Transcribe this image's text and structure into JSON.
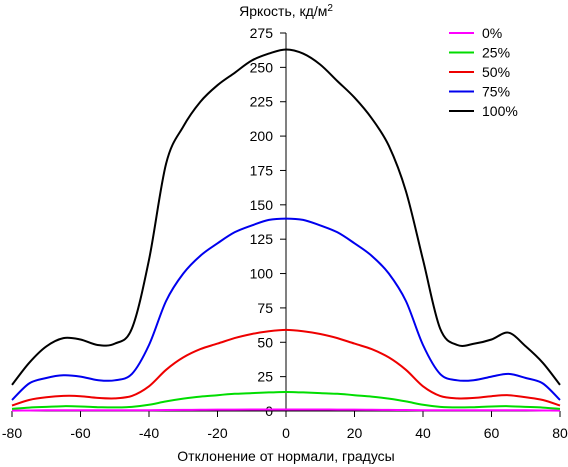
{
  "chart_data": {
    "type": "line",
    "ylabel_main": "Яркость, кд/м",
    "ylabel_sup": "2",
    "xlabel": "Отклонение от нормали, градусы",
    "xlim": [
      -80,
      80
    ],
    "ylim": [
      0,
      275
    ],
    "xticks": [
      -80,
      -60,
      -40,
      -20,
      0,
      20,
      40,
      60,
      80
    ],
    "yticks": [
      0,
      25,
      50,
      75,
      100,
      125,
      150,
      175,
      200,
      225,
      250,
      275
    ],
    "grid": false,
    "legend_position": "top-right",
    "x": [
      -80,
      -75,
      -70,
      -65,
      -60,
      -55,
      -50,
      -45,
      -40,
      -35,
      -30,
      -25,
      -20,
      -15,
      -10,
      -5,
      0,
      5,
      10,
      15,
      20,
      25,
      30,
      35,
      40,
      45,
      50,
      55,
      60,
      65,
      70,
      75,
      80
    ],
    "series": [
      {
        "name": "0%",
        "color": "#ff00ff",
        "values": [
          0.3,
          0.4,
          0.5,
          0.6,
          0.6,
          0.5,
          0.5,
          0.5,
          0.6,
          0.7,
          0.8,
          0.9,
          1.0,
          1.0,
          1.1,
          1.1,
          1.1,
          1.1,
          1.1,
          1.0,
          1.0,
          0.9,
          0.8,
          0.7,
          0.6,
          0.5,
          0.5,
          0.5,
          0.6,
          0.6,
          0.5,
          0.4,
          0.3
        ]
      },
      {
        "name": "25%",
        "color": "#00dd00",
        "values": [
          1.5,
          2.5,
          3,
          3.5,
          3.3,
          2.8,
          2.6,
          3,
          4.5,
          7,
          9,
          10.5,
          11.5,
          12.5,
          13,
          13.5,
          13.8,
          13.5,
          13,
          12.5,
          11.5,
          10.5,
          9,
          7,
          4.5,
          3,
          2.6,
          2.8,
          3.3,
          3.5,
          3,
          2.5,
          1.5
        ]
      },
      {
        "name": "50%",
        "color": "#ee0000",
        "values": [
          4,
          8,
          10,
          11,
          10.8,
          9.5,
          9.2,
          11,
          18,
          30,
          39,
          45,
          49,
          53,
          56,
          58,
          59,
          58,
          56,
          53,
          49,
          45,
          39,
          30,
          18,
          11,
          9.2,
          9.5,
          10.8,
          11.5,
          10,
          8,
          4
        ]
      },
      {
        "name": "75%",
        "color": "#0000ee",
        "values": [
          8,
          20,
          24,
          26,
          25,
          22.5,
          22.3,
          27,
          48,
          80,
          100,
          113,
          122,
          130,
          135,
          139,
          140,
          139,
          135,
          130,
          122,
          113,
          100,
          80,
          48,
          27,
          22.3,
          22.5,
          25,
          27,
          24,
          20,
          8
        ]
      },
      {
        "name": "100%",
        "color": "#000000",
        "values": [
          19,
          35,
          47,
          53,
          52,
          48,
          49,
          60,
          110,
          180,
          207,
          225,
          237,
          246,
          255,
          260,
          263,
          260,
          252,
          240,
          228,
          213,
          193,
          160,
          110,
          60,
          48,
          49,
          52,
          57,
          47,
          35,
          19
        ]
      }
    ]
  }
}
